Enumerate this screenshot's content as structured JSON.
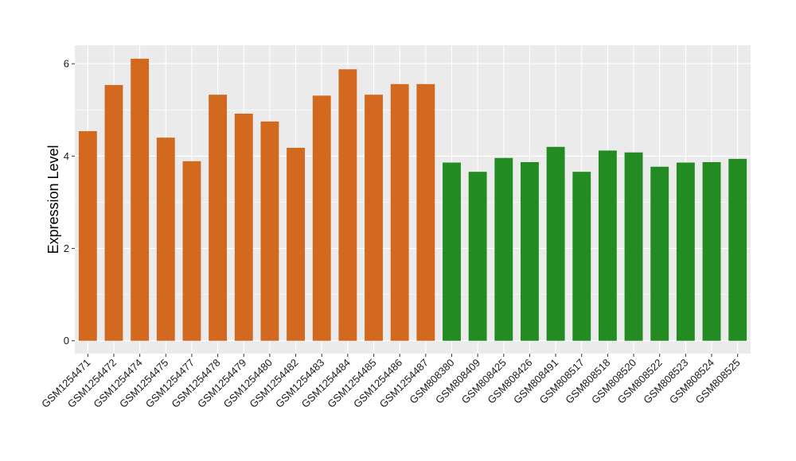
{
  "chart_data": {
    "type": "bar",
    "title": "",
    "xlabel": "",
    "ylabel": "Expression Level",
    "ylim": [
      -0.28,
      6.4
    ],
    "yticks": [
      0,
      2,
      4,
      6
    ],
    "grid": true,
    "legend": "none",
    "categories": [
      "GSM1254471",
      "GSM1254472",
      "GSM1254474",
      "GSM1254475",
      "GSM1254477",
      "GSM1254478",
      "GSM1254479",
      "GSM1254480",
      "GSM1254482",
      "GSM1254483",
      "GSM1254484",
      "GSM1254485",
      "GSM1254486",
      "GSM1254487",
      "GSM808380",
      "GSM808409",
      "GSM808425",
      "GSM808426",
      "GSM808491",
      "GSM808517",
      "GSM808518",
      "GSM808520",
      "GSM808522",
      "GSM808523",
      "GSM808524",
      "GSM808525"
    ],
    "values": [
      4.54,
      5.54,
      6.11,
      4.4,
      3.89,
      5.33,
      4.92,
      4.75,
      4.18,
      5.31,
      5.88,
      5.33,
      5.56,
      5.56,
      3.86,
      3.66,
      3.96,
      3.87,
      4.2,
      3.66,
      4.12,
      4.08,
      3.77,
      3.86,
      3.87,
      3.94
    ],
    "colors": [
      "#D2691E",
      "#D2691E",
      "#D2691E",
      "#D2691E",
      "#D2691E",
      "#D2691E",
      "#D2691E",
      "#D2691E",
      "#D2691E",
      "#D2691E",
      "#D2691E",
      "#D2691E",
      "#D2691E",
      "#D2691E",
      "#228B22",
      "#228B22",
      "#228B22",
      "#228B22",
      "#228B22",
      "#228B22",
      "#228B22",
      "#228B22",
      "#228B22",
      "#228B22",
      "#228B22",
      "#228B22"
    ],
    "panel_background": "#EBEBEB",
    "grid_color": "#FFFFFF"
  }
}
